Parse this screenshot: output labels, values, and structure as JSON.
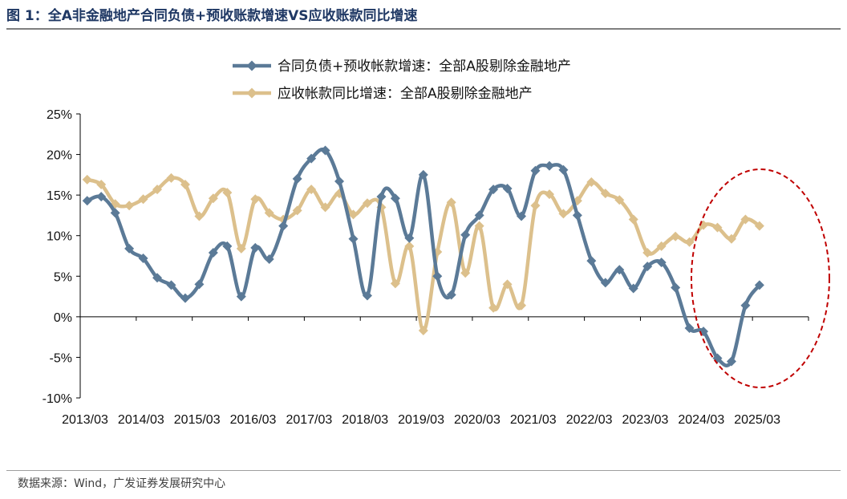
{
  "title": "图 1：全A非金融地产合同负债+预收账款增速VS应收账款同比增速",
  "source": "数据来源：Wind，广发证券发展研究中心",
  "chart_data": {
    "type": "line",
    "ylim": [
      -10,
      25
    ],
    "yticks": [
      -10,
      -5,
      0,
      5,
      10,
      15,
      20,
      25
    ],
    "ytick_labels": [
      "-10%",
      "-5%",
      "0%",
      "5%",
      "10%",
      "15%",
      "20%",
      "25%"
    ],
    "xtick_labels": [
      "2013/03",
      "2014/03",
      "2015/03",
      "2016/03",
      "2017/03",
      "2018/03",
      "2019/03",
      "2020/03",
      "2021/03",
      "2022/03",
      "2023/03",
      "2024/03",
      "2025/03"
    ],
    "legend_position": "top-center",
    "grid": false,
    "annotation": "dashed red ellipse highlighting 2023/03–2025/03",
    "series": [
      {
        "name": "合同负债+预收帐款增速：全部A股剔除金融地产",
        "color": "#5b7a97",
        "marker": "diamond",
        "values": [
          14.3,
          14.8,
          12.8,
          8.4,
          7.2,
          4.8,
          3.9,
          2.3,
          4.0,
          7.9,
          8.7,
          2.5,
          8.5,
          7.1,
          11.2,
          17.0,
          19.5,
          20.5,
          16.7,
          9.6,
          2.6,
          14.8,
          14.6,
          9.7,
          17.5,
          5.0,
          2.7,
          10.1,
          12.5,
          15.7,
          15.8,
          12.4,
          18.0,
          18.6,
          18.1,
          12.5,
          6.9,
          4.2,
          5.8,
          3.5,
          6.2,
          6.7,
          3.6,
          -1.4,
          -1.8,
          -5.1,
          -5.5,
          1.4,
          3.9
        ]
      },
      {
        "name": "应收帐款同比增速：全部A股剔除金融地产",
        "color": "#dcc08c",
        "marker": "diamond",
        "values": [
          16.9,
          16.3,
          13.9,
          13.7,
          14.5,
          15.7,
          17.1,
          16.3,
          12.4,
          14.6,
          15.3,
          8.4,
          14.5,
          12.8,
          12.0,
          13.1,
          15.7,
          13.5,
          15.2,
          12.6,
          14.0,
          13.5,
          4.1,
          8.7,
          -1.7,
          8.0,
          14.1,
          5.4,
          11.2,
          1.1,
          4.0,
          1.4,
          13.7,
          15.1,
          12.7,
          14.3,
          16.6,
          15.2,
          14.4,
          12.0,
          7.9,
          8.7,
          9.9,
          9.2,
          11.3,
          11.0,
          9.6,
          12.0,
          11.2
        ]
      }
    ]
  }
}
